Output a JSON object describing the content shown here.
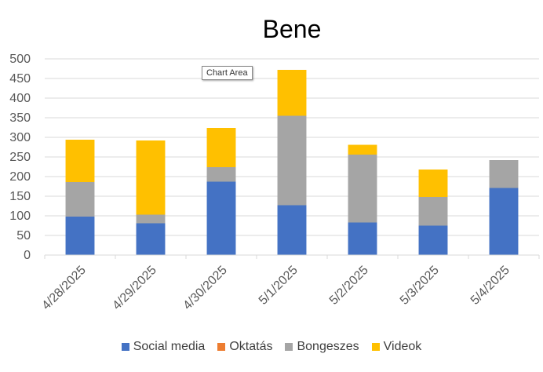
{
  "tooltip": "Chart Area",
  "colors": {
    "Social media": "#4472c4",
    "Oktatás": "#ed7d31",
    "Bongeszes": "#a5a5a5",
    "Videok": "#ffc000"
  },
  "chart_data": {
    "type": "bar",
    "stacked": true,
    "title": "Bene",
    "xlabel": "",
    "ylabel": "",
    "ylim": [
      0,
      500
    ],
    "yticks": [
      0,
      50,
      100,
      150,
      200,
      250,
      300,
      350,
      400,
      450,
      500
    ],
    "grid": true,
    "legend_position": "bottom",
    "categories": [
      "4/28/2025",
      "4/29/2025",
      "4/30/2025",
      "5/1/2025",
      "5/2/2025",
      "5/3/2025",
      "5/4/2025"
    ],
    "series": [
      {
        "name": "Social media",
        "values": [
          98,
          81,
          187,
          127,
          83,
          75,
          171
        ]
      },
      {
        "name": "Oktatás",
        "values": [
          0,
          0,
          0,
          0,
          0,
          0,
          0
        ]
      },
      {
        "name": "Bongeszes",
        "values": [
          88,
          22,
          37,
          228,
          173,
          73,
          71
        ]
      },
      {
        "name": "Videok",
        "values": [
          108,
          189,
          100,
          117,
          25,
          70,
          0
        ]
      }
    ]
  }
}
